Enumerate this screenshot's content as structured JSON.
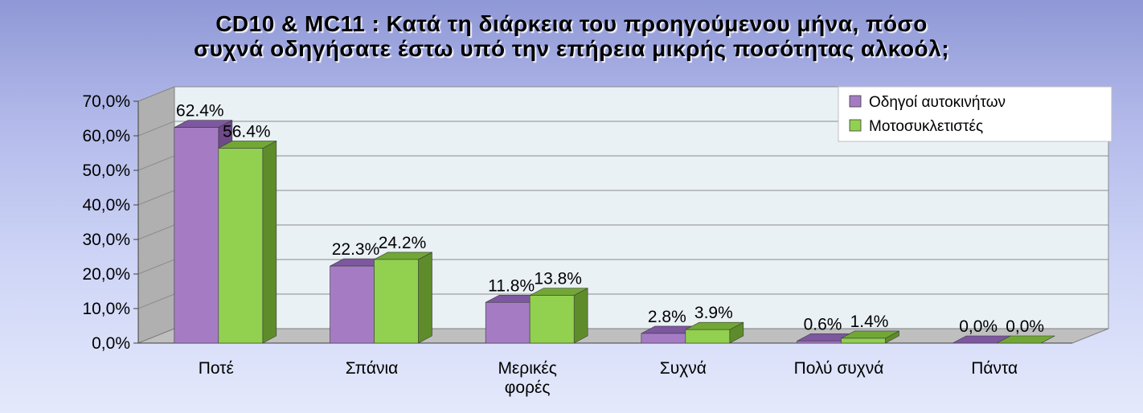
{
  "chart_data": {
    "type": "bar",
    "title_lines": [
      "CD10 & MC11 : Κατά τη διάρκεια του προηγούμενου μήνα, πόσο",
      "συχνά οδηγήσατε έστω υπό την επήρεια μικρής ποσότητας αλκοόλ;"
    ],
    "categories": [
      "Ποτέ",
      "Σπάνια",
      "Μερικές φορές",
      "Συχνά",
      "Πολύ συχνά",
      "Πάντα"
    ],
    "category_lines": [
      [
        "Ποτέ"
      ],
      [
        "Σπάνια"
      ],
      [
        "Μερικές",
        "φορές"
      ],
      [
        "Συχνά"
      ],
      [
        "Πολύ συχνά"
      ],
      [
        "Πάντα"
      ]
    ],
    "series": [
      {
        "name": "Οδηγοί αυτοκινήτων",
        "values": [
          62.4,
          22.3,
          11.8,
          2.8,
          0.6,
          0.0
        ],
        "labels": [
          "62.4%",
          "22.3%",
          "11.8%",
          "2.8%",
          "0.6%",
          "0,0%"
        ],
        "color": "#a57cc4",
        "side_color": "#6e4a8a",
        "top_color": "#7d57a0"
      },
      {
        "name": "Μοτοσυκλετιστές",
        "values": [
          56.4,
          24.2,
          13.8,
          3.9,
          1.4,
          0.0
        ],
        "labels": [
          "56.4%",
          "24.2%",
          "13.8%",
          "3.9%",
          "1.4%",
          "0,0%"
        ],
        "color": "#92d050",
        "side_color": "#5e8c2a",
        "top_color": "#71a835"
      }
    ],
    "y_ticks": [
      "0,0%",
      "10,0%",
      "20,0%",
      "30,0%",
      "40,0%",
      "50,0%",
      "60,0%",
      "70,0%"
    ],
    "ylim": [
      0,
      70
    ],
    "grid": true,
    "legend_position": "top-right",
    "plot_background": "#eaf1f5",
    "floor_color": "#bfbfbf"
  }
}
